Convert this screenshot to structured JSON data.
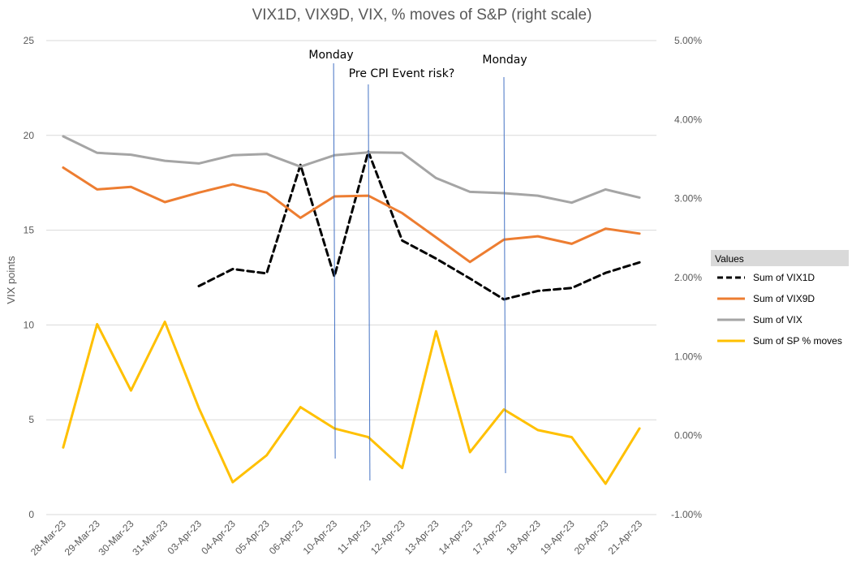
{
  "chart_data": {
    "type": "line",
    "title": "VIX1D, VIX9D, VIX, % moves of S&P (right scale)",
    "ylabel": "VIX points",
    "y2label": "",
    "categories": [
      "28-Mar-23",
      "29-Mar-23",
      "30-Mar-23",
      "31-Mar-23",
      "03-Apr-23",
      "04-Apr-23",
      "05-Apr-23",
      "06-Apr-23",
      "10-Apr-23",
      "11-Apr-23",
      "12-Apr-23",
      "13-Apr-23",
      "14-Apr-23",
      "17-Apr-23",
      "18-Apr-23",
      "19-Apr-23",
      "20-Apr-23",
      "21-Apr-23"
    ],
    "ylim": [
      0,
      25
    ],
    "y_ticks": [
      "0",
      "5",
      "10",
      "15",
      "20",
      "25"
    ],
    "y2lim": [
      -1.0,
      5.0
    ],
    "y2_ticks": [
      "-1.00%",
      "0.00%",
      "1.00%",
      "2.00%",
      "3.00%",
      "4.00%",
      "5.00%"
    ],
    "grid": true,
    "legend_title": "Values",
    "legend_position": "right",
    "series": [
      {
        "name": "Sum of VIX1D",
        "axis": "left",
        "color": "#000000",
        "dashed": true,
        "values": [
          null,
          null,
          null,
          null,
          12.05,
          12.95,
          12.72,
          18.45,
          12.55,
          19.15,
          14.45,
          13.5,
          12.45,
          11.35,
          11.8,
          11.95,
          12.75,
          13.3
        ]
      },
      {
        "name": "Sum of VIX9D",
        "axis": "left",
        "color": "#ED7D31",
        "dashed": false,
        "values": [
          18.3,
          17.15,
          17.28,
          16.48,
          16.98,
          17.42,
          16.98,
          15.65,
          16.78,
          16.82,
          15.9,
          14.62,
          13.32,
          14.5,
          14.68,
          14.28,
          15.08,
          14.82
        ]
      },
      {
        "name": "Sum of VIX",
        "axis": "left",
        "color": "#A5A5A5",
        "dashed": false,
        "values": [
          19.95,
          19.08,
          18.98,
          18.66,
          18.52,
          18.95,
          19.02,
          18.35,
          18.95,
          19.1,
          19.08,
          17.75,
          17.02,
          16.95,
          16.82,
          16.45,
          17.15,
          16.72
        ]
      },
      {
        "name": "Sum of SP % moves",
        "axis": "right",
        "color": "#FFC000",
        "dashed": false,
        "values": [
          -0.15,
          1.41,
          0.57,
          1.44,
          0.35,
          -0.59,
          -0.25,
          0.36,
          0.09,
          -0.02,
          -0.41,
          1.32,
          -0.21,
          0.33,
          0.07,
          -0.02,
          -0.61,
          0.09
        ]
      }
    ],
    "annotations": [
      {
        "text": "Monday",
        "at_category": "10-Apr-23"
      },
      {
        "text": "Pre CPI Event risk?",
        "at_category": "11-Apr-23"
      },
      {
        "text": "Monday",
        "at_category": "17-Apr-23"
      }
    ]
  }
}
